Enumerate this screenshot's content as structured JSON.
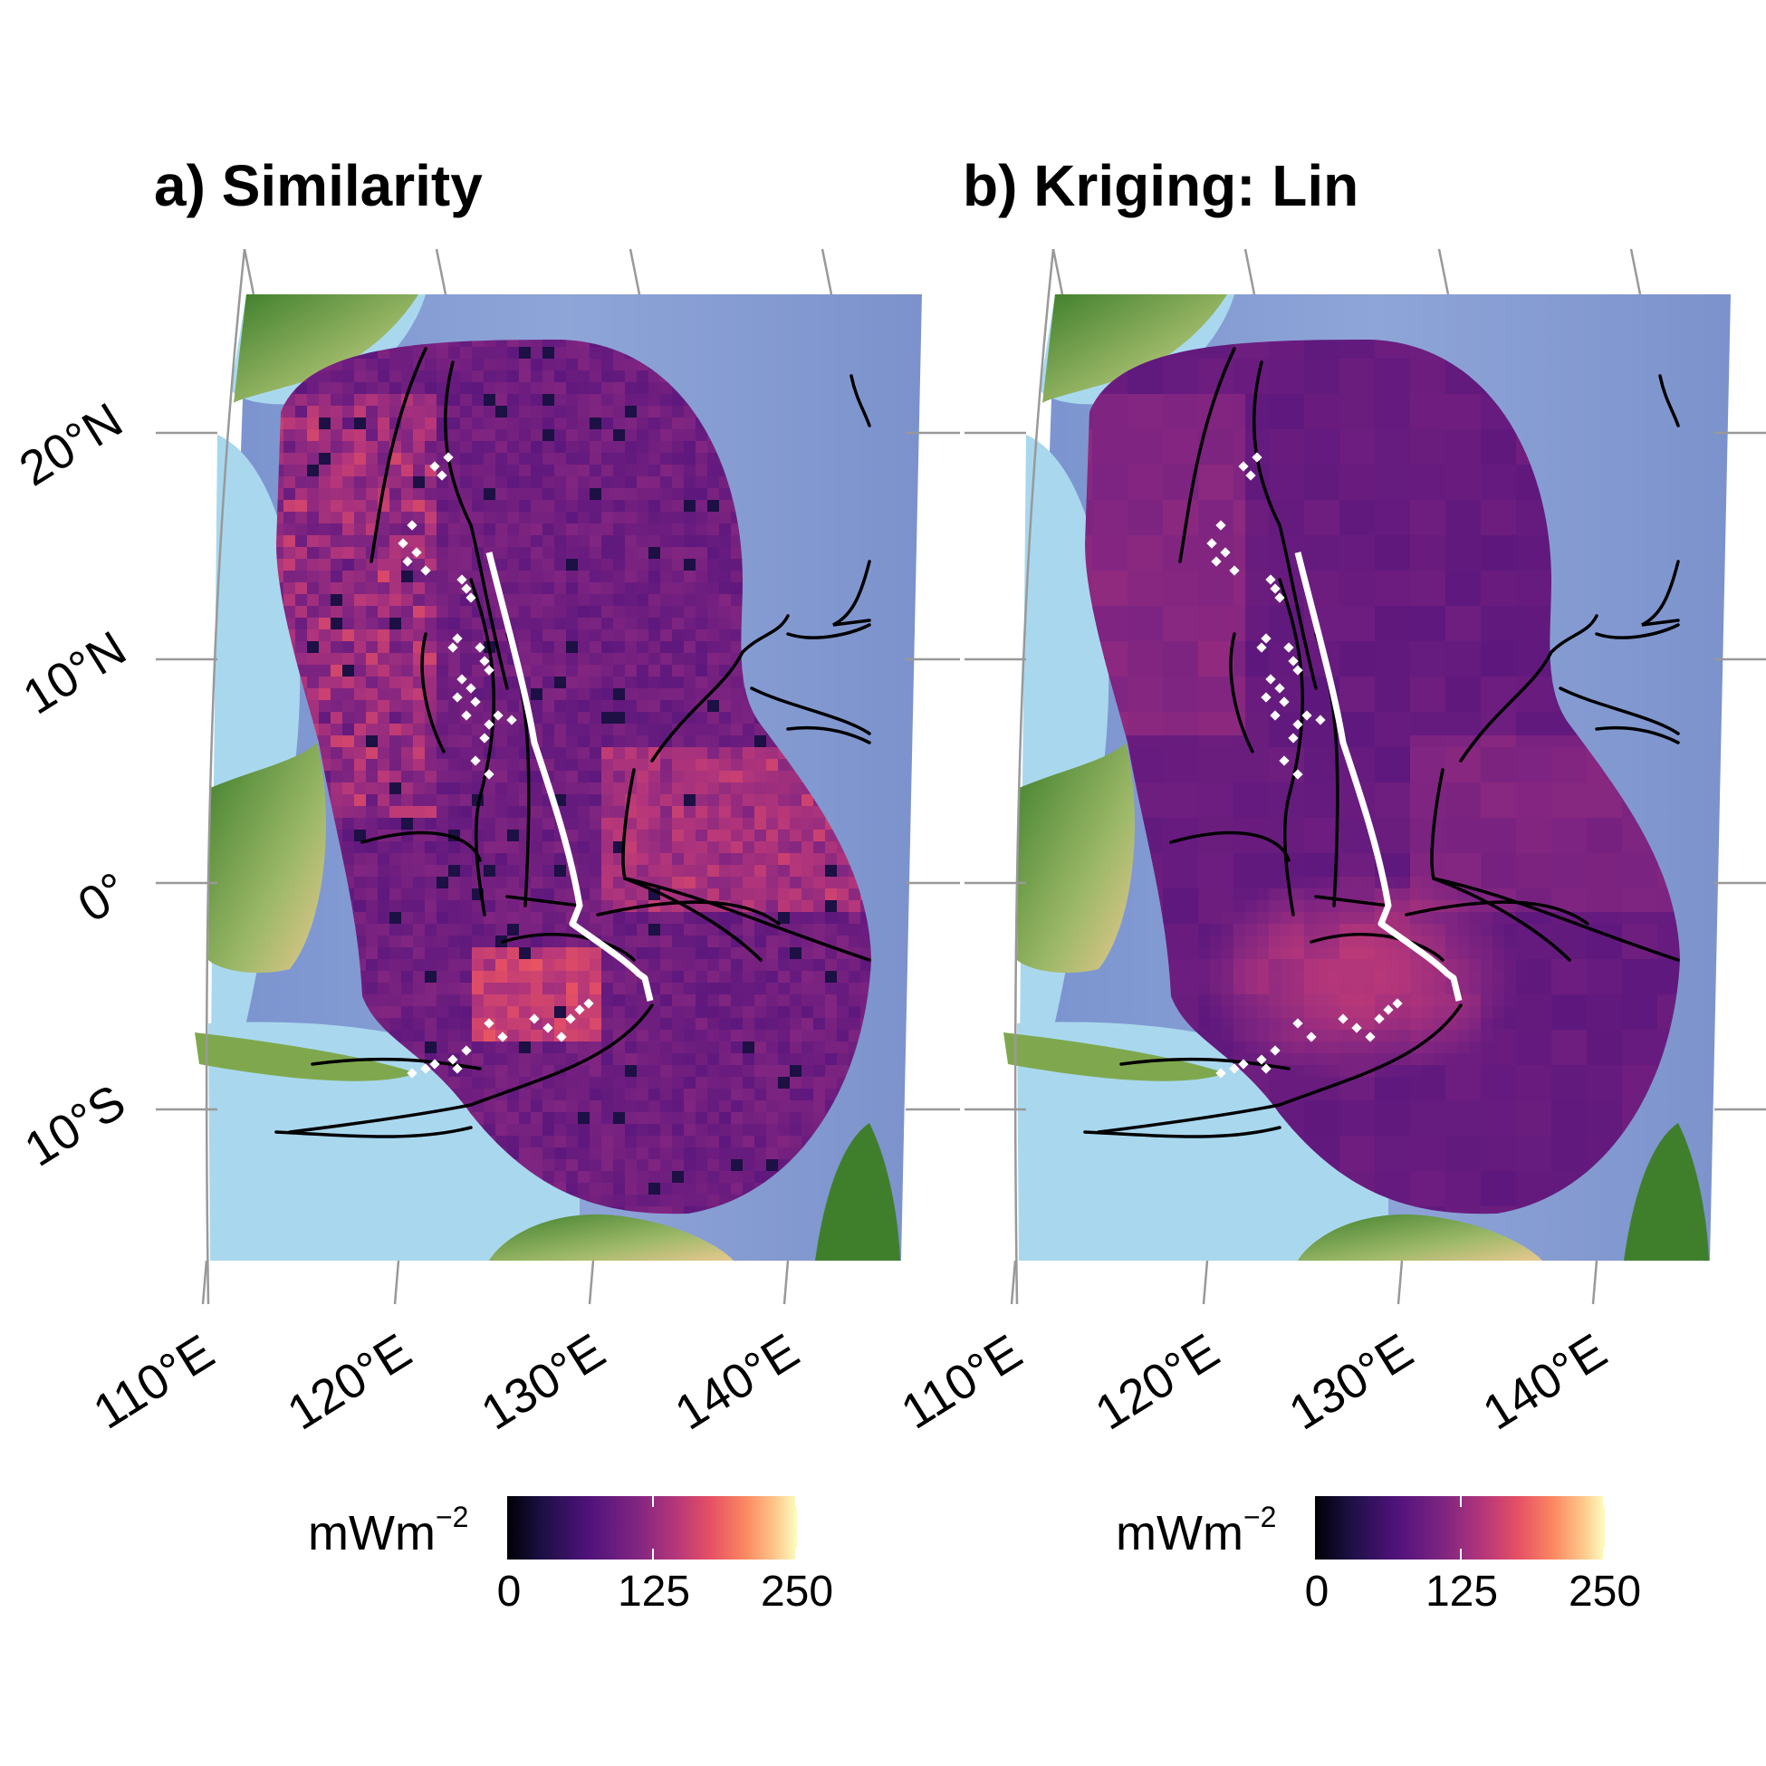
{
  "panels": [
    {
      "title": "a) Similarity",
      "field": "similarity"
    },
    {
      "title": "b) Kriging: Lin",
      "field": "kriging"
    }
  ],
  "axes": {
    "lat_labels": [
      "20°N",
      "10°N",
      "0°",
      "10°S"
    ],
    "lon_labels": [
      "110°E",
      "120°E",
      "130°E",
      "140°E"
    ],
    "lat_values": [
      20,
      10,
      0,
      -10
    ],
    "lon_values": [
      110,
      120,
      130,
      140
    ]
  },
  "legend": {
    "unit": "mWm",
    "unit_exponent": "−2",
    "ticks": [
      "0",
      "125",
      "250"
    ],
    "tick_values": [
      0,
      125,
      250
    ],
    "colormap": "magma"
  },
  "colors": {
    "land_low": "#3f7f2c",
    "land_high": "#e8c890",
    "shallow_water": "#a9d8ee",
    "deep_water": "#6a7fc0",
    "fault_lines": "#000000",
    "ridge_line": "#ffffff"
  },
  "map_layers": [
    "topography-bathymetry",
    "heat-flow-grid",
    "plate-boundaries",
    "spreading-ridge",
    "observation-points",
    "graticule"
  ]
}
